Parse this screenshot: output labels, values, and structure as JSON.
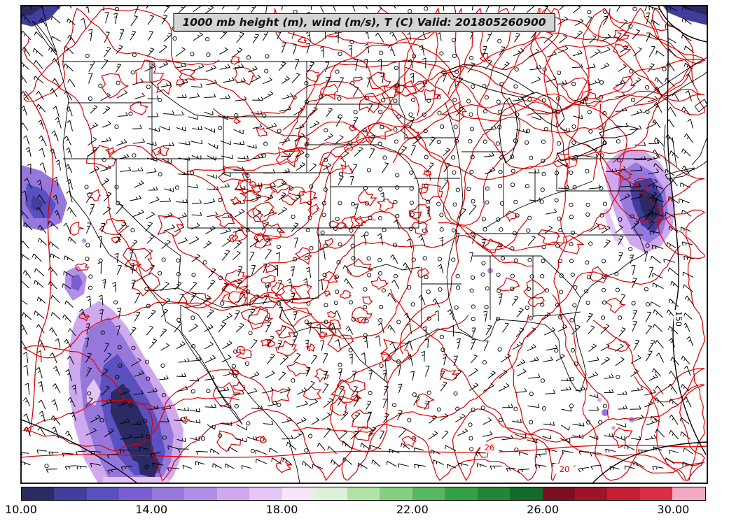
{
  "figure": {
    "title": "1000 mb height (m), wind (m/s), T (C) Valid: 201805260900"
  },
  "colorbar": {
    "min": 10,
    "max": 31,
    "unit": "C",
    "ticks": [
      {
        "label": "10.00",
        "value": 10
      },
      {
        "label": "14.00",
        "value": 14
      },
      {
        "label": "18.00",
        "value": 18
      },
      {
        "label": "22.00",
        "value": 22
      },
      {
        "label": "26.00",
        "value": 26
      },
      {
        "label": "30.00",
        "value": 30
      }
    ],
    "colors": [
      "#2c2a63",
      "#413d9b",
      "#5a50c0",
      "#7a5fd0",
      "#9678dd",
      "#b18fe8",
      "#cfa9f0",
      "#e6c6f6",
      "#f7e6f9",
      "#ddf2d8",
      "#b2e3a6",
      "#84cf7c",
      "#57b75c",
      "#36a047",
      "#218636",
      "#136b28",
      "#7c1021",
      "#9d1426",
      "#c41f33",
      "#dd2e44",
      "#f2a9c4"
    ]
  },
  "map": {
    "background": "#ffffff",
    "temperature_contour_color": "#dd0000",
    "height_contour_color": "#000000",
    "wind_barb_color": "#000000",
    "contour_labels": [
      {
        "text": "150",
        "type": "height"
      },
      {
        "text": "20",
        "type": "temperature"
      },
      {
        "text": "26",
        "type": "temperature"
      }
    ]
  },
  "chart_data": {
    "type": "heatmap",
    "title": "1000 mb height (m), wind (m/s), T (C) Valid: 201805260900",
    "level": "1000 mb",
    "valid_time": "201805260900",
    "variables": [
      "geopotential height (m)",
      "wind (m/s)",
      "temperature (C)"
    ],
    "region": "Continental United States, northern Mexico and adjacent oceans",
    "colorbar": {
      "quantity": "temperature (C)",
      "tick_values": [
        10.0,
        14.0,
        18.0,
        22.0,
        26.0,
        30.0
      ],
      "tick_labels": [
        "10.00",
        "14.00",
        "18.00",
        "22.00",
        "26.00",
        "30.00"
      ],
      "range": [
        10,
        31
      ]
    },
    "overlays": [
      "red temperature contours (C)",
      "black geopotential height contours (m)",
      "station wind barbs (m/s); open circles where wind is calm"
    ],
    "height_contour_labels": [
      "150"
    ],
    "temperature_contour_labels": [
      "20",
      "26"
    ],
    "shaded_cold_regions": [
      "Pacific coast / Baja California (approx 10-17 C)",
      "Pacific Northwest offshore (approx 12-15 C)",
      "Southern California coastal spot (approx 13-16 C)",
      "New England / Mid-Atlantic offshore (approx 10-17 C)",
      "Far northeast corner of domain (approx 10-12 C)"
    ]
  }
}
